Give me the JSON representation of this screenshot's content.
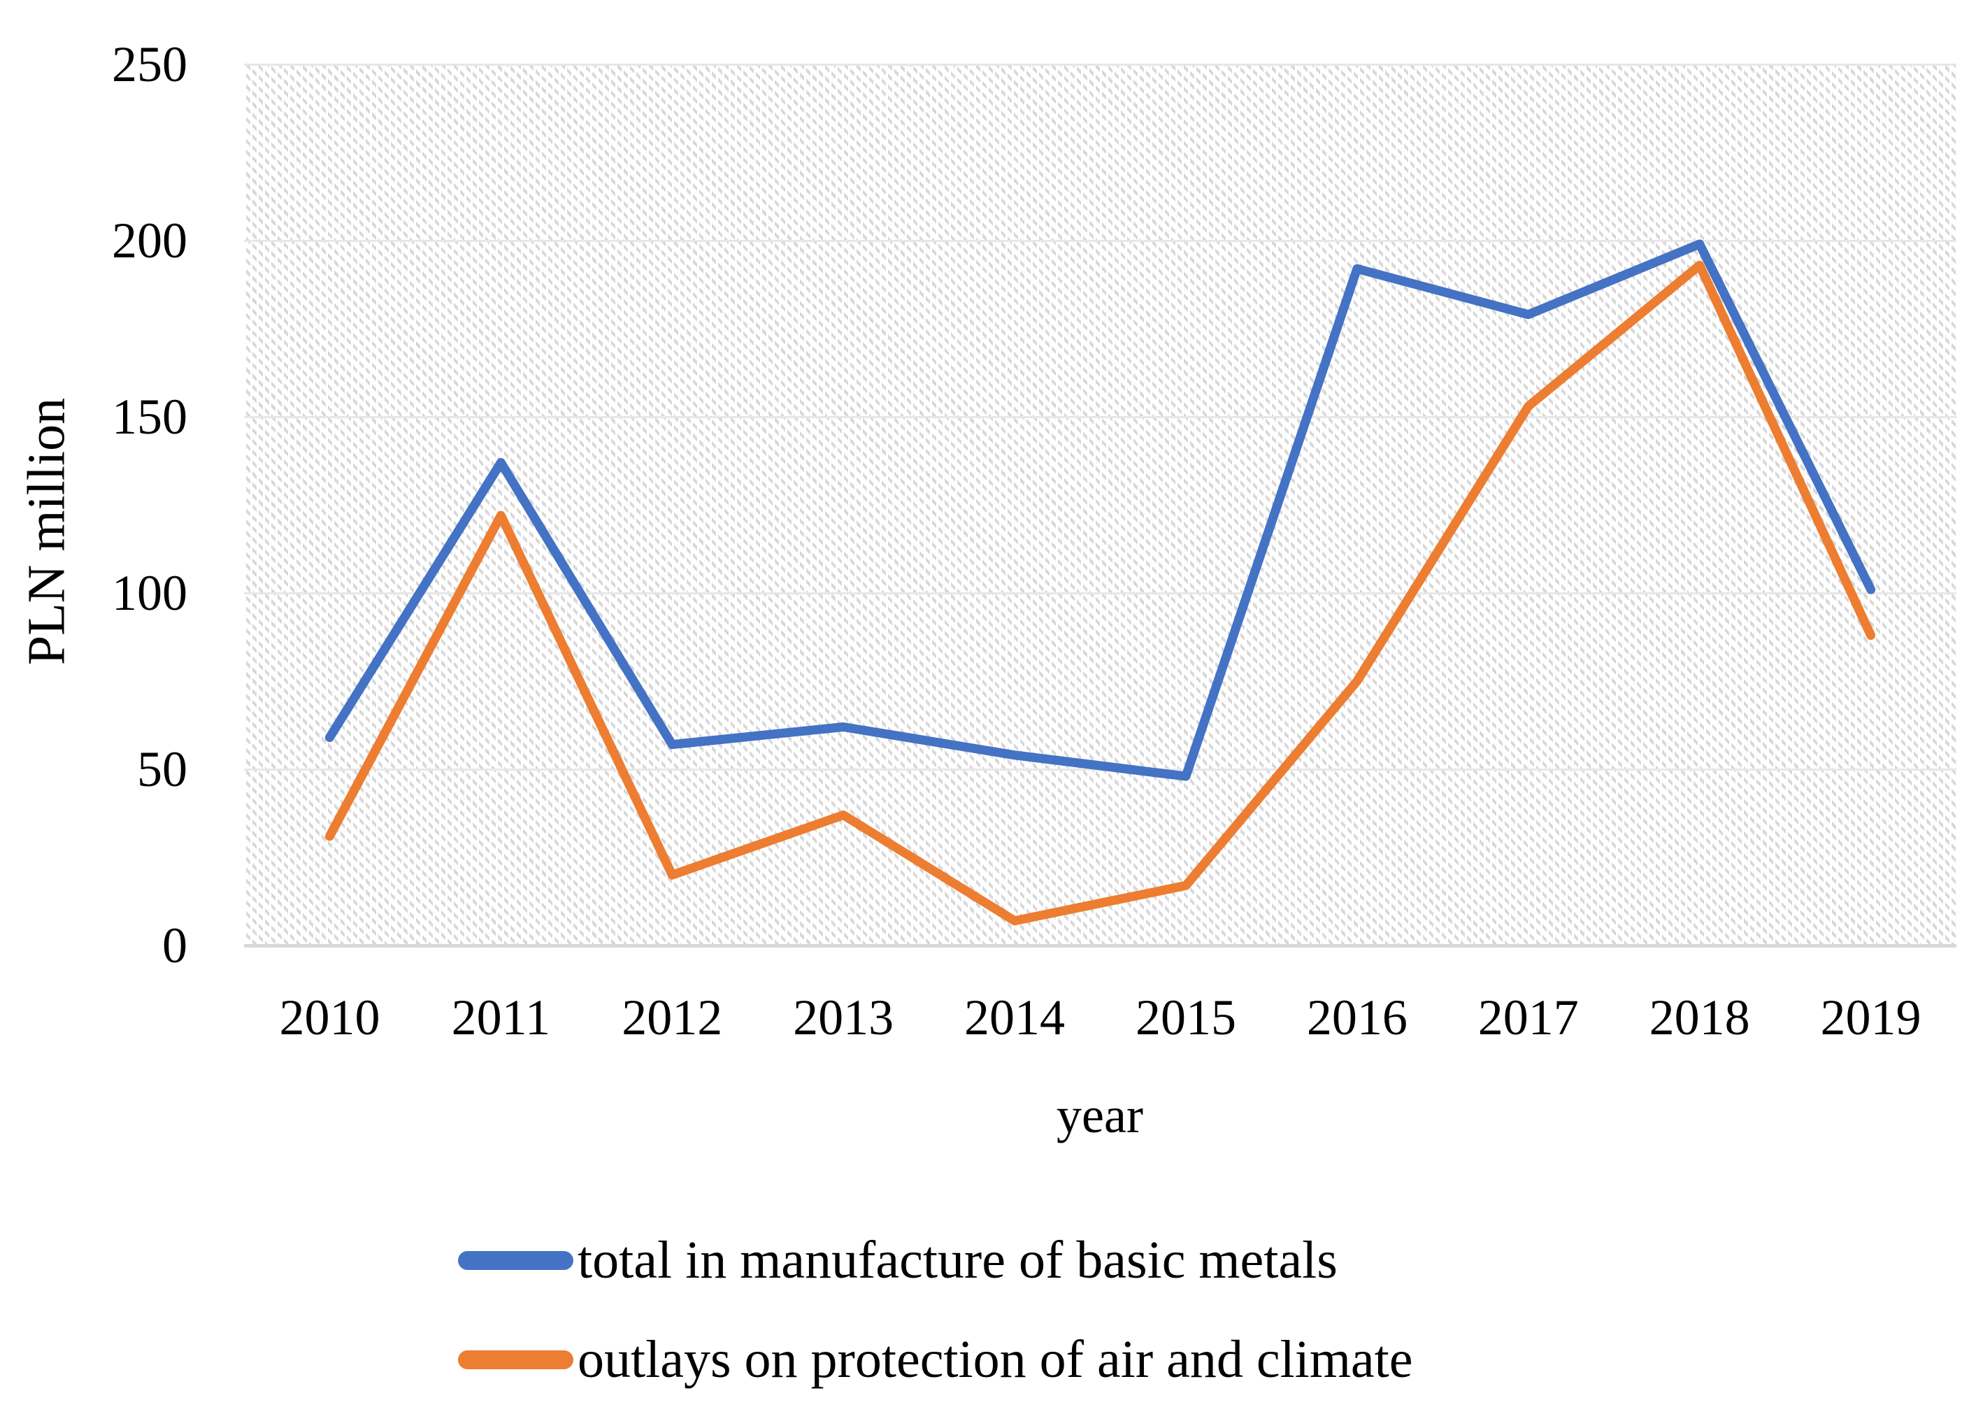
{
  "chart_data": {
    "type": "line",
    "title": "",
    "xlabel": "year",
    "ylabel": "PLN million",
    "categories": [
      "2010",
      "2011",
      "2012",
      "2013",
      "2014",
      "2015",
      "2016",
      "2017",
      "2018",
      "2019"
    ],
    "yticks": [
      0,
      50,
      100,
      150,
      200,
      250
    ],
    "ylim": [
      0,
      250
    ],
    "grid": "horizontal",
    "plot_background": "light diagonal dotted hatch",
    "legend_position": "bottom-left",
    "series": [
      {
        "name": "total in manufacture of basic metals",
        "color": "#4472C4",
        "values": [
          59,
          137,
          57,
          62,
          54,
          48,
          192,
          179,
          199,
          101
        ]
      },
      {
        "name": "outlays on protection of air and climate",
        "color": "#ED7D31",
        "values": [
          31,
          122,
          20,
          37,
          7,
          17,
          75,
          153,
          193,
          88
        ]
      }
    ]
  },
  "colors": {
    "gridline": "#e7e7e7",
    "axis_line": "#d9d9d9",
    "text": "#000000"
  }
}
